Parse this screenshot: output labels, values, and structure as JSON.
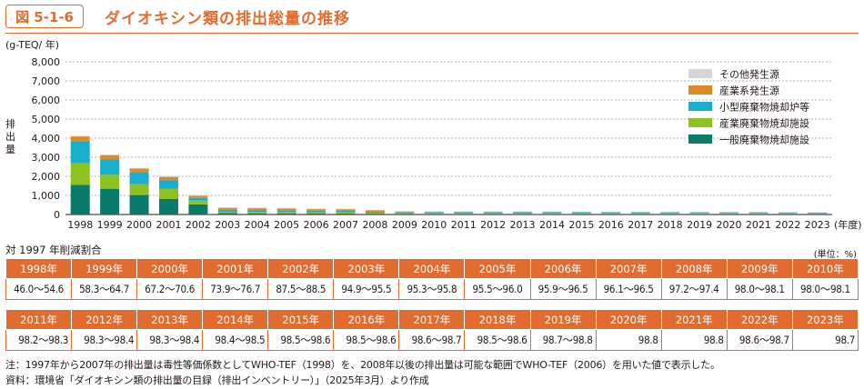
{
  "header": {
    "badge": "図 5-1-6",
    "title": "ダイオキシン類の排出総量の推移"
  },
  "chart_data": {
    "type": "bar",
    "stacked": true,
    "unit_label": "(g-TEQ/ 年)",
    "ylabel": "排出量",
    "xunit": "(年度)",
    "ylim": [
      0,
      8000
    ],
    "yticks": [
      "0",
      "1,000",
      "2,000",
      "3,000",
      "4,000",
      "5,000",
      "6,000",
      "7,000",
      "8,000"
    ],
    "categories": [
      "1998",
      "1999",
      "2000",
      "2001",
      "2002",
      "2003",
      "2004",
      "2005",
      "2006",
      "2007",
      "2008",
      "2009",
      "2010",
      "2011",
      "2012",
      "2013",
      "2014",
      "2015",
      "2016",
      "2017",
      "2018",
      "2019",
      "2020",
      "2021",
      "2022",
      "2023"
    ],
    "series": [
      {
        "name": "一般廃棄物焼却施設",
        "color": "#0a7b6b",
        "values": [
          1550,
          1350,
          1020,
          810,
          530,
          70,
          64,
          62,
          55,
          52,
          42,
          36,
          34,
          34,
          34,
          34,
          32,
          30,
          29,
          29,
          29,
          28,
          27,
          27,
          26,
          25
        ]
      },
      {
        "name": "産業廃棄物焼却施設",
        "color": "#8cc220",
        "values": [
          1130,
          730,
          570,
          530,
          200,
          75,
          72,
          70,
          59,
          57,
          44,
          34,
          33,
          33,
          32,
          32,
          32,
          31,
          31,
          31,
          30,
          29,
          28,
          28,
          27,
          26
        ]
      },
      {
        "name": "小型廃棄物焼却炉等",
        "color": "#19aece",
        "values": [
          1150,
          800,
          600,
          460,
          140,
          100,
          96,
          90,
          82,
          82,
          60,
          40,
          38,
          37,
          37,
          36,
          36,
          34,
          33,
          33,
          32,
          31,
          30,
          30,
          29,
          28
        ]
      },
      {
        "name": "産業系発生源",
        "color": "#de8a28",
        "values": [
          260,
          230,
          220,
          170,
          110,
          100,
          97,
          93,
          86,
          85,
          68,
          48,
          46,
          46,
          44,
          43,
          41,
          39,
          36,
          35,
          34,
          33,
          32,
          32,
          31,
          30
        ]
      },
      {
        "name": "その他発生源",
        "color": "#d4d5d6",
        "values": [
          30,
          30,
          30,
          30,
          30,
          30,
          29,
          29,
          27,
          26,
          25,
          22,
          22,
          22,
          21,
          20,
          19,
          18,
          18,
          17,
          17,
          16,
          15,
          15,
          14,
          14
        ]
      }
    ],
    "legend_order": [
      "その他発生源",
      "産業系発生源",
      "小型廃棄物焼却炉等",
      "産業廃棄物焼却施設",
      "一般廃棄物焼却施設"
    ],
    "legend_position": "right"
  },
  "reduction": {
    "title": "対 1997 年削減割合",
    "unit": "(単位：%)",
    "row1": [
      {
        "year": "1998年",
        "value": "46.0～54.6"
      },
      {
        "year": "1999年",
        "value": "58.3～64.7"
      },
      {
        "year": "2000年",
        "value": "67.2～70.6"
      },
      {
        "year": "2001年",
        "value": "73.9～76.7"
      },
      {
        "year": "2002年",
        "value": "87.5～88.5"
      },
      {
        "year": "2003年",
        "value": "94.9～95.5"
      },
      {
        "year": "2004年",
        "value": "95.3～95.8"
      },
      {
        "year": "2005年",
        "value": "95.5～96.0"
      },
      {
        "year": "2006年",
        "value": "95.9～96.5"
      },
      {
        "year": "2007年",
        "value": "96.1～96.5"
      },
      {
        "year": "2008年",
        "value": "97.2～97.4"
      },
      {
        "year": "2009年",
        "value": "98.0～98.1"
      },
      {
        "year": "2010年",
        "value": "98.0～98.1"
      }
    ],
    "row2": [
      {
        "year": "2011年",
        "value": "98.2～98.3"
      },
      {
        "year": "2012年",
        "value": "98.3～98.4"
      },
      {
        "year": "2013年",
        "value": "98.3～98.4"
      },
      {
        "year": "2014年",
        "value": "98.4～98.5"
      },
      {
        "year": "2015年",
        "value": "98.5～98.6"
      },
      {
        "year": "2016年",
        "value": "98.5～98.6"
      },
      {
        "year": "2017年",
        "value": "98.6～98.7"
      },
      {
        "year": "2018年",
        "value": "98.5～98.6"
      },
      {
        "year": "2019年",
        "value": "98.7～98.8"
      },
      {
        "year": "2020年",
        "value": "98.8"
      },
      {
        "year": "2021年",
        "value": "98.8"
      },
      {
        "year": "2022年",
        "value": "98.6～98.7"
      },
      {
        "year": "2023年",
        "value": "98.7"
      }
    ]
  },
  "notes": {
    "note": "注：1997年から2007年の排出量は毒性等価係数としてWHO-TEF（1998）を、2008年以後の排出量は可能な範囲でWHO-TEF（2006）を用いた値で表示した。",
    "source": "資料：環境省「ダイオキシン類の排出量の目録（排出インベントリー）」（2025年3月）より作成"
  }
}
